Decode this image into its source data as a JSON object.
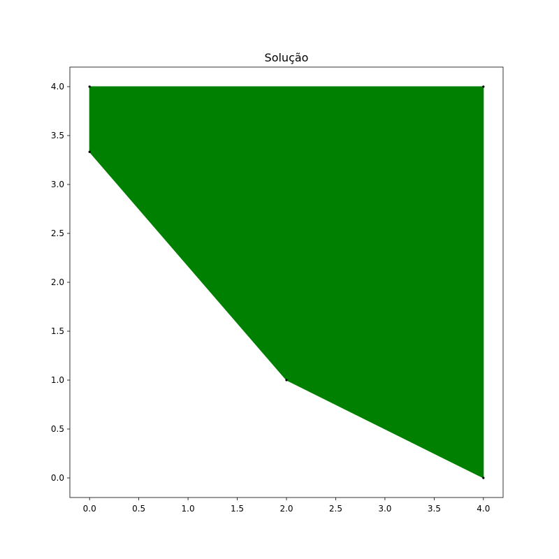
{
  "chart_data": {
    "type": "area",
    "title": "Solução",
    "xlabel": "",
    "ylabel": "",
    "xlim": [
      -0.2,
      4.2
    ],
    "ylim": [
      -0.2,
      4.2
    ],
    "grid": false,
    "x_ticks": [
      0.0,
      0.5,
      1.0,
      1.5,
      2.0,
      2.5,
      3.0,
      3.5,
      4.0
    ],
    "x_tick_labels": [
      "0.0",
      "0.5",
      "1.0",
      "1.5",
      "2.0",
      "2.5",
      "3.0",
      "3.5",
      "4.0"
    ],
    "y_ticks": [
      0.0,
      0.5,
      1.0,
      1.5,
      2.0,
      2.5,
      3.0,
      3.5,
      4.0
    ],
    "y_tick_labels": [
      "0.0",
      "0.5",
      "1.0",
      "1.5",
      "2.0",
      "2.5",
      "3.0",
      "3.5",
      "4.0"
    ],
    "series": [
      {
        "fill_color": "#008000",
        "vertices": [
          {
            "x": 0.0,
            "y": 4.0
          },
          {
            "x": 4.0,
            "y": 4.0
          },
          {
            "x": 4.0,
            "y": 0.0
          },
          {
            "x": 2.0,
            "y": 1.0
          },
          {
            "x": 0.0,
            "y": 3.333
          }
        ]
      }
    ],
    "vertex_marker_color": "#000000"
  }
}
